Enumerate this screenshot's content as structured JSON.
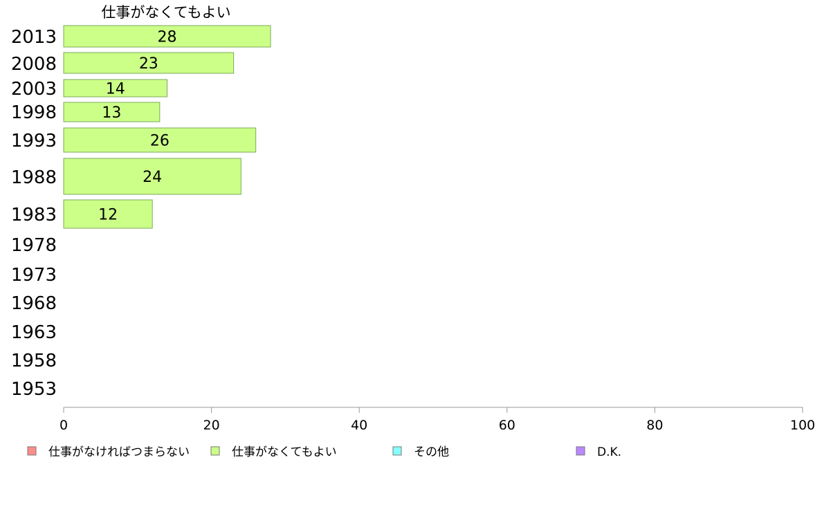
{
  "chart_data": {
    "type": "bar",
    "orientation": "horizontal",
    "title": "仕事がなくてもよい",
    "categories": [
      "2013",
      "2008",
      "2003",
      "1998",
      "1993",
      "1988",
      "1983",
      "1978",
      "1973",
      "1968",
      "1963",
      "1958",
      "1953"
    ],
    "series": [
      {
        "name": "仕事がなくてもよい",
        "values": [
          28,
          23,
          14,
          13,
          26,
          24,
          12,
          null,
          null,
          null,
          null,
          null,
          null
        ]
      }
    ],
    "xlim": [
      0,
      100
    ],
    "xticks": [
      "0",
      "20",
      "40",
      "60",
      "80",
      "100"
    ],
    "xlabel": "",
    "ylabel": "",
    "grid": false,
    "legend_position": "bottom",
    "legend": [
      {
        "label": "仕事がなければつまらない",
        "color": "#ff8c8c"
      },
      {
        "label": "仕事がなくてもよい",
        "color": "#ccff88"
      },
      {
        "label": "その他",
        "color": "#88ffff"
      },
      {
        "label": "D.K.",
        "color": "#bb88ff"
      }
    ],
    "colors": {
      "bar_fill": "#ccff88",
      "bar_stroke": "#7aaa5a",
      "axis": "#999999"
    }
  }
}
